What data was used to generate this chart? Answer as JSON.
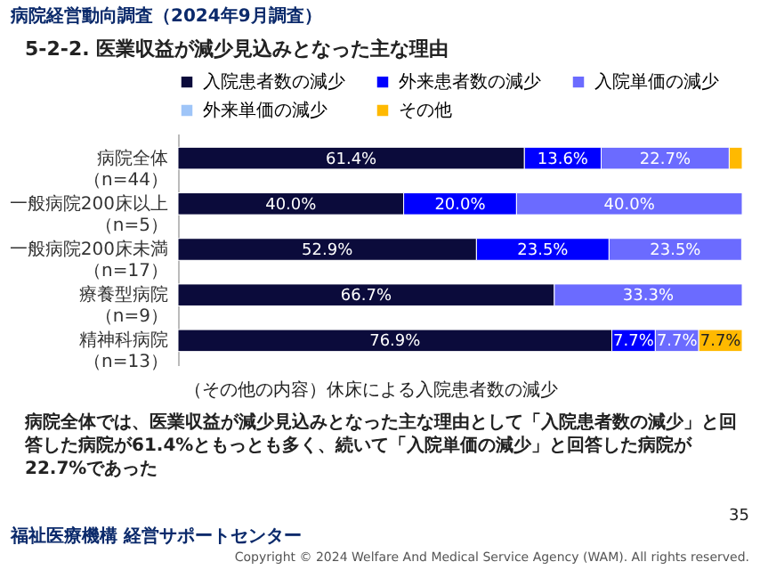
{
  "chart_data": {
    "type": "bar",
    "orientation": "horizontal",
    "stacked": true,
    "title": "病院経営動向調査（2024年9月調査）",
    "subtitle": "5-2-2. 医業収益が減少見込みとなった主な理由",
    "categories": [
      "病院全体（n=44）",
      "一般病院200床以上（n=5）",
      "一般病院200床未満（n=17）",
      "療養型病院（n=9）",
      "精神科病院（n=13）"
    ],
    "series": [
      {
        "name": "入院患者数の減少",
        "color": "#0b0b3b",
        "values": [
          61.4,
          40.0,
          52.9,
          66.7,
          76.9
        ],
        "value_labels": [
          "61.4%",
          "40.0%",
          "52.9%",
          "66.7%",
          "76.9%"
        ]
      },
      {
        "name": "外来患者数の減少",
        "color": "#0000ff",
        "values": [
          13.6,
          20.0,
          23.5,
          null,
          7.7
        ],
        "value_labels": [
          "13.6%",
          "20.0%",
          "23.5%",
          null,
          "7.7%"
        ]
      },
      {
        "name": "入院単価の減少",
        "color": "#6b6bff",
        "values": [
          22.7,
          40.0,
          23.5,
          33.3,
          7.7
        ],
        "value_labels": [
          "22.7%",
          "40.0%",
          "23.5%",
          "33.3%",
          "7.7%"
        ]
      },
      {
        "name": "外来単価の減少",
        "color": "#9fc5f8",
        "values": [
          null,
          null,
          null,
          null,
          null
        ]
      },
      {
        "name": "その他",
        "color": "#ffb900",
        "values": [
          2.3,
          null,
          null,
          null,
          7.7
        ],
        "value_labels": [
          null,
          null,
          null,
          null,
          "7.7%"
        ]
      }
    ],
    "legend": "top",
    "grid": false,
    "annotations": [
      "（その他の内容）休床による入院患者数の減少",
      "病院全体では、医業収益が減少見込みとなった主な理由として「入院患者数の減少」と回答した病院が61.4%ともっとも多く、続いて「入院単価の減少」と回答した病院が22.7%であった",
      "35",
      "福祉医療機構 経営サポートセンター",
      "Copyright © 2024 Welfare And Medical Service Agency (WAM). All rights reserved."
    ]
  }
}
